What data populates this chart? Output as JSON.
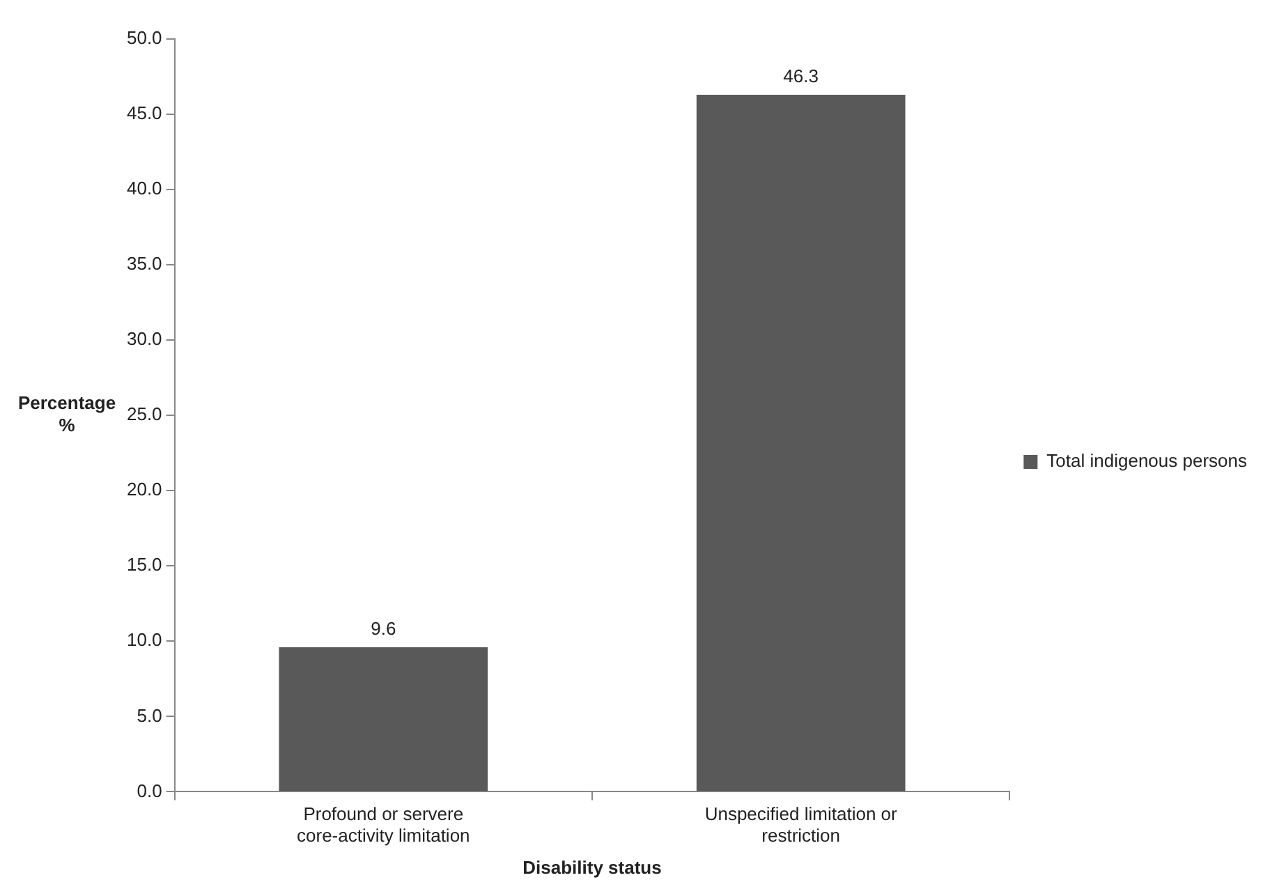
{
  "chart_data": {
    "type": "bar",
    "xlabel": "Disability status",
    "ylabel": "Percentage %",
    "categories": [
      "Profound or servere core-activity limitation",
      "Unspecified limitation or restriction"
    ],
    "series": [
      {
        "name": "Total indigenous persons",
        "color": "#595959",
        "values": [
          9.6,
          46.3
        ]
      }
    ],
    "ylim": [
      0,
      50
    ],
    "yticks": [
      {
        "value": 0,
        "label": "0.0"
      },
      {
        "value": 5,
        "label": "5.0"
      },
      {
        "value": 10,
        "label": "10.0"
      },
      {
        "value": 15,
        "label": "15.0"
      },
      {
        "value": 20,
        "label": "20.0"
      },
      {
        "value": 25,
        "label": "25.0"
      },
      {
        "value": 30,
        "label": "30.0"
      },
      {
        "value": 35,
        "label": "35.0"
      },
      {
        "value": 40,
        "label": "40.0"
      },
      {
        "value": 45,
        "label": "45.0"
      },
      {
        "value": 50,
        "label": "50.0"
      }
    ],
    "data_labels": true,
    "grid": false,
    "legend": "right"
  }
}
